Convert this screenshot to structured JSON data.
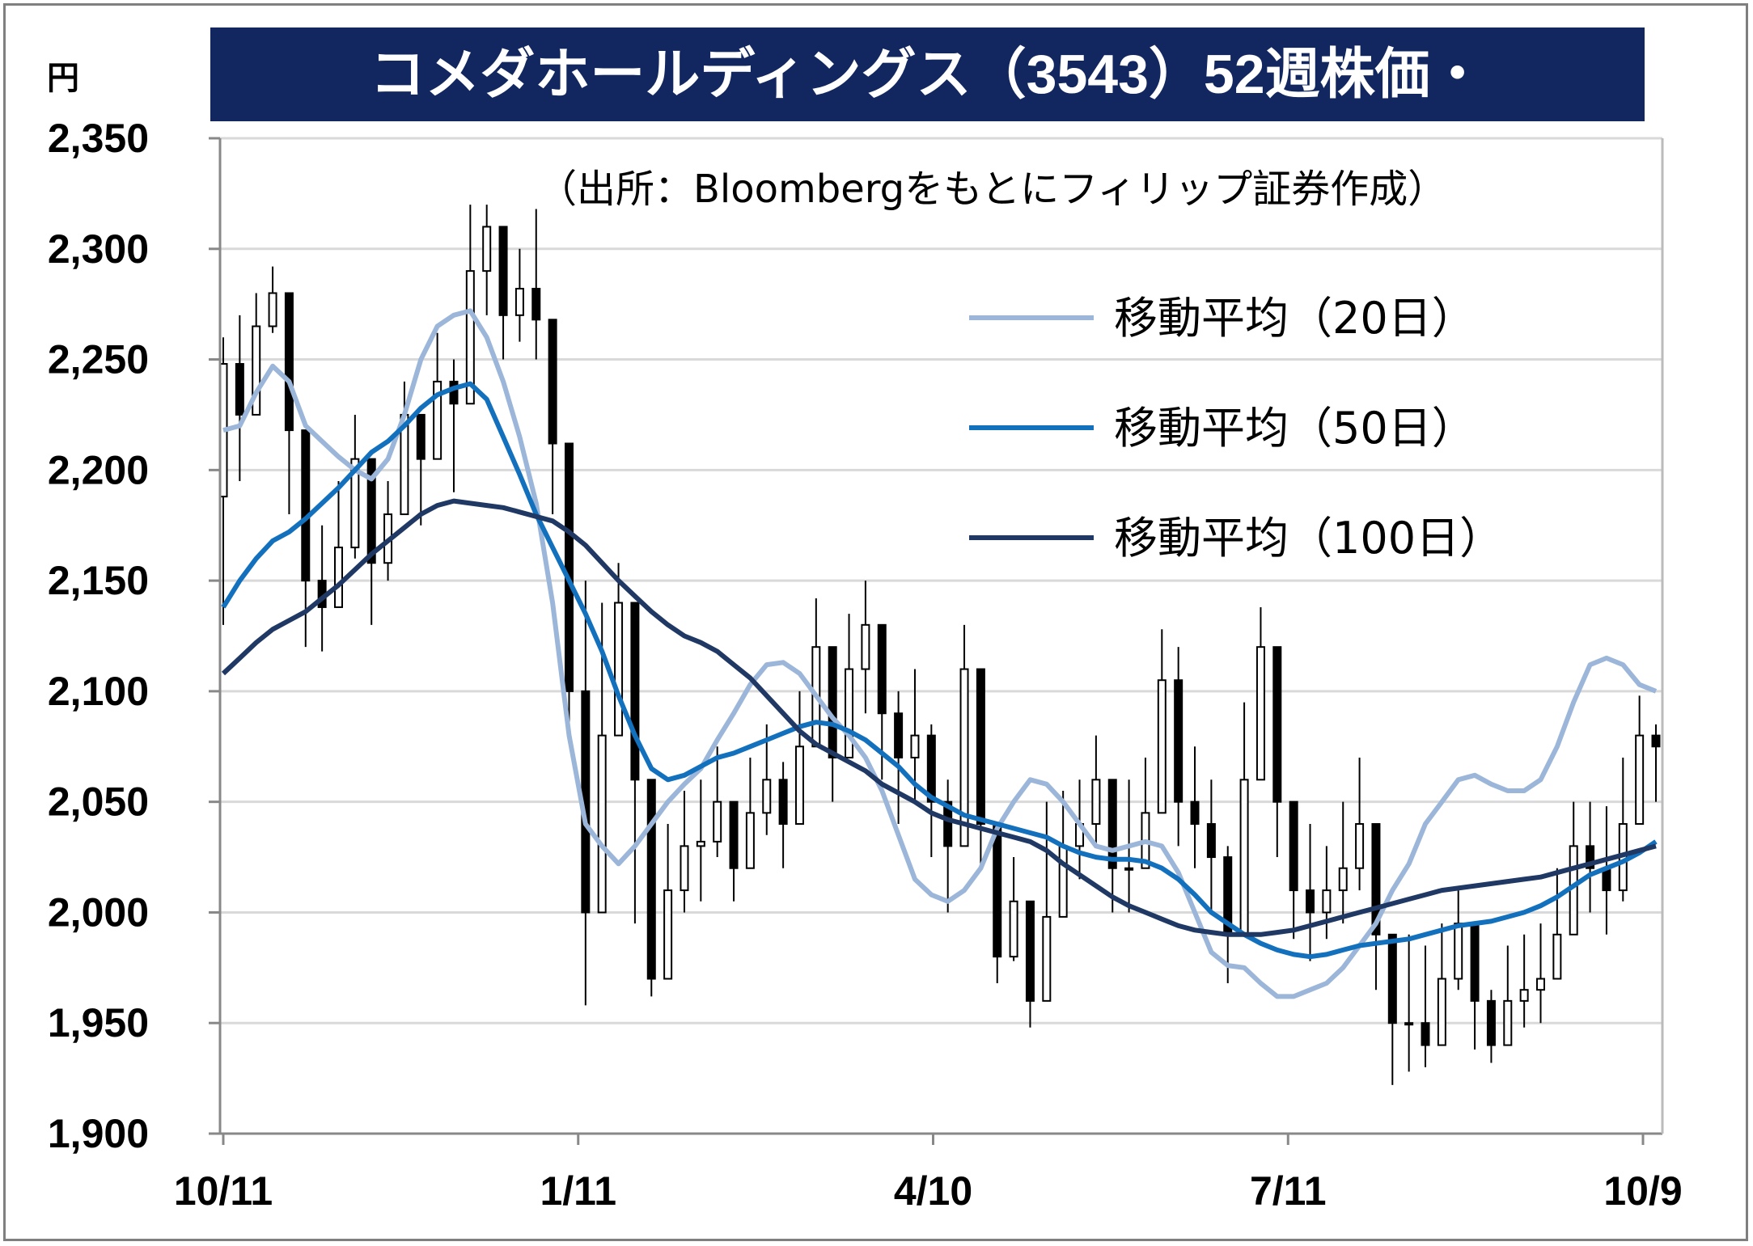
{
  "chart_data": {
    "type": "line",
    "title": "コメダホールディングス（3543）52週株価・",
    "unit_label": "円",
    "source_note": "（出所：Bloombergをもとにフィリップ証券作成）",
    "ylim": [
      1900,
      2350
    ],
    "yticks": [
      "1,900",
      "1,950",
      "2,000",
      "2,050",
      "2,100",
      "2,150",
      "2,200",
      "2,250",
      "2,300",
      "2,350"
    ],
    "xticks": [
      "10/11",
      "1/11",
      "4/10",
      "7/11",
      "10/9"
    ],
    "grid": true,
    "legend_position": "top-right",
    "candles": {
      "x": [
        0,
        3,
        6,
        9,
        12,
        15,
        18,
        21,
        24,
        27,
        30,
        33,
        36,
        39,
        42,
        45,
        48,
        51,
        54,
        57,
        60,
        63,
        66,
        69,
        72,
        75,
        78,
        81,
        84,
        87,
        90,
        93,
        96,
        99,
        102,
        105,
        108,
        111,
        114,
        117,
        120,
        123,
        126,
        129,
        132,
        135,
        138,
        141,
        144,
        147,
        150,
        153,
        156,
        159,
        162,
        165,
        168,
        171,
        174,
        177,
        180,
        183,
        186,
        189,
        192,
        195,
        198,
        201,
        204,
        207,
        210,
        213,
        216,
        219,
        222,
        225,
        228,
        231,
        234,
        237,
        240,
        243,
        246,
        249,
        252,
        255,
        258,
        261
      ],
      "close": [
        2248,
        2225,
        2265,
        2280,
        2218,
        2150,
        2138,
        2165,
        2205,
        2158,
        2180,
        2225,
        2205,
        2240,
        2230,
        2290,
        2310,
        2270,
        2282,
        2268,
        2212,
        2100,
        2000,
        2080,
        2140,
        2060,
        1970,
        2010,
        2030,
        2032,
        2050,
        2020,
        2045,
        2060,
        2040,
        2075,
        2120,
        2070,
        2110,
        2130,
        2090,
        2070,
        2080,
        2050,
        2030,
        2110,
        2040,
        1980,
        2005,
        1960,
        1998,
        2030,
        2040,
        2060,
        2020,
        2020,
        2045,
        2105,
        2050,
        2040,
        2025,
        1990,
        2060,
        2120,
        2050,
        2010,
        2000,
        2010,
        2020,
        2040,
        1990,
        1950,
        1950,
        1940,
        1970,
        1995,
        1960,
        1940,
        1960,
        1965,
        1970,
        1990,
        2030,
        2020,
        2010,
        2040,
        2080,
        2075
      ],
      "high": [
        2260,
        2270,
        2280,
        2292,
        2230,
        2180,
        2175,
        2195,
        2225,
        2185,
        2195,
        2240,
        2225,
        2262,
        2250,
        2320,
        2320,
        2290,
        2300,
        2318,
        2240,
        2185,
        2150,
        2140,
        2158,
        2140,
        2020,
        2040,
        2055,
        2060,
        2075,
        2050,
        2070,
        2085,
        2068,
        2100,
        2142,
        2108,
        2135,
        2150,
        2125,
        2100,
        2110,
        2085,
        2060,
        2130,
        2080,
        2020,
        2025,
        1990,
        2050,
        2055,
        2060,
        2080,
        2060,
        2060,
        2070,
        2128,
        2120,
        2075,
        2060,
        2030,
        2095,
        2138,
        2080,
        2040,
        2040,
        2030,
        2050,
        2070,
        2020,
        1985,
        1990,
        1985,
        1995,
        2010,
        1990,
        1965,
        1985,
        1990,
        1995,
        2020,
        2050,
        2050,
        2048,
        2070,
        2098,
        2085
      ],
      "low": [
        2130,
        2195,
        2225,
        2262,
        2180,
        2120,
        2118,
        2140,
        2160,
        2130,
        2150,
        2190,
        2175,
        2205,
        2190,
        2250,
        2270,
        2250,
        2258,
        2250,
        2180,
        2080,
        1958,
        2000,
        2080,
        1995,
        1962,
        1990,
        2000,
        2005,
        2025,
        2005,
        2020,
        2035,
        2020,
        2050,
        2080,
        2050,
        2075,
        2090,
        2060,
        2040,
        2050,
        2025,
        2000,
        2075,
        2020,
        1968,
        1978,
        1948,
        1970,
        2000,
        2015,
        2030,
        2000,
        2000,
        2025,
        2075,
        2030,
        2020,
        2000,
        1968,
        2020,
        2080,
        2025,
        1988,
        1978,
        1988,
        1995,
        2010,
        1965,
        1922,
        1928,
        1930,
        1940,
        1965,
        1938,
        1932,
        1945,
        1948,
        1950,
        1970,
        2000,
        2000,
        1990,
        2005,
        2040,
        2050
      ]
    },
    "x": [
      0,
      3,
      6,
      9,
      12,
      15,
      18,
      21,
      24,
      27,
      30,
      33,
      36,
      39,
      42,
      45,
      48,
      51,
      54,
      57,
      60,
      63,
      66,
      69,
      72,
      75,
      78,
      81,
      84,
      87,
      90,
      93,
      96,
      99,
      102,
      105,
      108,
      111,
      114,
      117,
      120,
      123,
      126,
      129,
      132,
      135,
      138,
      141,
      144,
      147,
      150,
      153,
      156,
      159,
      162,
      165,
      168,
      171,
      174,
      177,
      180,
      183,
      186,
      189,
      192,
      195,
      198,
      201,
      204,
      207,
      210,
      213,
      216,
      219,
      222,
      225,
      228,
      231,
      234,
      237,
      240,
      243,
      246,
      249,
      252,
      255,
      258,
      261
    ],
    "series": [
      {
        "name": "移動平均（20日）",
        "color": "#9bb6d9",
        "values": [
          2218,
          2220,
          2235,
          2247,
          2240,
          2220,
          2213,
          2206,
          2200,
          2196,
          2205,
          2225,
          2250,
          2265,
          2270,
          2272,
          2260,
          2240,
          2215,
          2185,
          2140,
          2080,
          2040,
          2030,
          2022,
          2030,
          2040,
          2050,
          2058,
          2065,
          2078,
          2090,
          2103,
          2112,
          2113,
          2108,
          2098,
          2088,
          2080,
          2070,
          2055,
          2035,
          2015,
          2008,
          2005,
          2010,
          2020,
          2038,
          2050,
          2060,
          2058,
          2050,
          2040,
          2030,
          2028,
          2030,
          2032,
          2030,
          2018,
          2000,
          1982,
          1976,
          1975,
          1968,
          1962,
          1962,
          1965,
          1968,
          1975,
          1985,
          1995,
          2010,
          2022,
          2040,
          2050,
          2060,
          2062,
          2058,
          2055,
          2055,
          2060,
          2075,
          2095,
          2112,
          2115,
          2112,
          2103,
          2100
        ]
      },
      {
        "name": "移動平均（50日）",
        "color": "#1370bd",
        "values": [
          2138,
          2150,
          2160,
          2168,
          2172,
          2178,
          2185,
          2192,
          2200,
          2208,
          2213,
          2220,
          2228,
          2234,
          2237,
          2239,
          2232,
          2215,
          2198,
          2180,
          2165,
          2150,
          2135,
          2118,
          2098,
          2080,
          2065,
          2060,
          2062,
          2066,
          2070,
          2072,
          2075,
          2078,
          2081,
          2084,
          2086,
          2085,
          2082,
          2078,
          2072,
          2066,
          2058,
          2052,
          2048,
          2044,
          2042,
          2040,
          2038,
          2036,
          2034,
          2030,
          2027,
          2025,
          2024,
          2024,
          2023,
          2020,
          2015,
          2008,
          2000,
          1995,
          1990,
          1986,
          1983,
          1981,
          1980,
          1981,
          1983,
          1985,
          1986,
          1987,
          1988,
          1990,
          1992,
          1994,
          1995,
          1996,
          1998,
          2000,
          2003,
          2007,
          2012,
          2017,
          2020,
          2023,
          2027,
          2032
        ]
      },
      {
        "name": "移動平均（100日）",
        "color": "#1f3864",
        "values": [
          2108,
          2115,
          2122,
          2128,
          2132,
          2136,
          2142,
          2148,
          2155,
          2162,
          2168,
          2174,
          2180,
          2184,
          2186,
          2185,
          2184,
          2183,
          2181,
          2179,
          2177,
          2172,
          2166,
          2158,
          2150,
          2143,
          2136,
          2130,
          2125,
          2122,
          2118,
          2112,
          2106,
          2098,
          2090,
          2082,
          2076,
          2072,
          2068,
          2064,
          2058,
          2054,
          2050,
          2045,
          2042,
          2040,
          2038,
          2036,
          2034,
          2032,
          2028,
          2022,
          2017,
          2012,
          2007,
          2003,
          2000,
          1997,
          1994,
          1992,
          1991,
          1990,
          1990,
          1990,
          1991,
          1992,
          1994,
          1996,
          1998,
          2000,
          2002,
          2004,
          2006,
          2008,
          2010,
          2011,
          2012,
          2013,
          2014,
          2015,
          2016,
          2018,
          2020,
          2022,
          2024,
          2026,
          2028,
          2030
        ]
      }
    ]
  }
}
